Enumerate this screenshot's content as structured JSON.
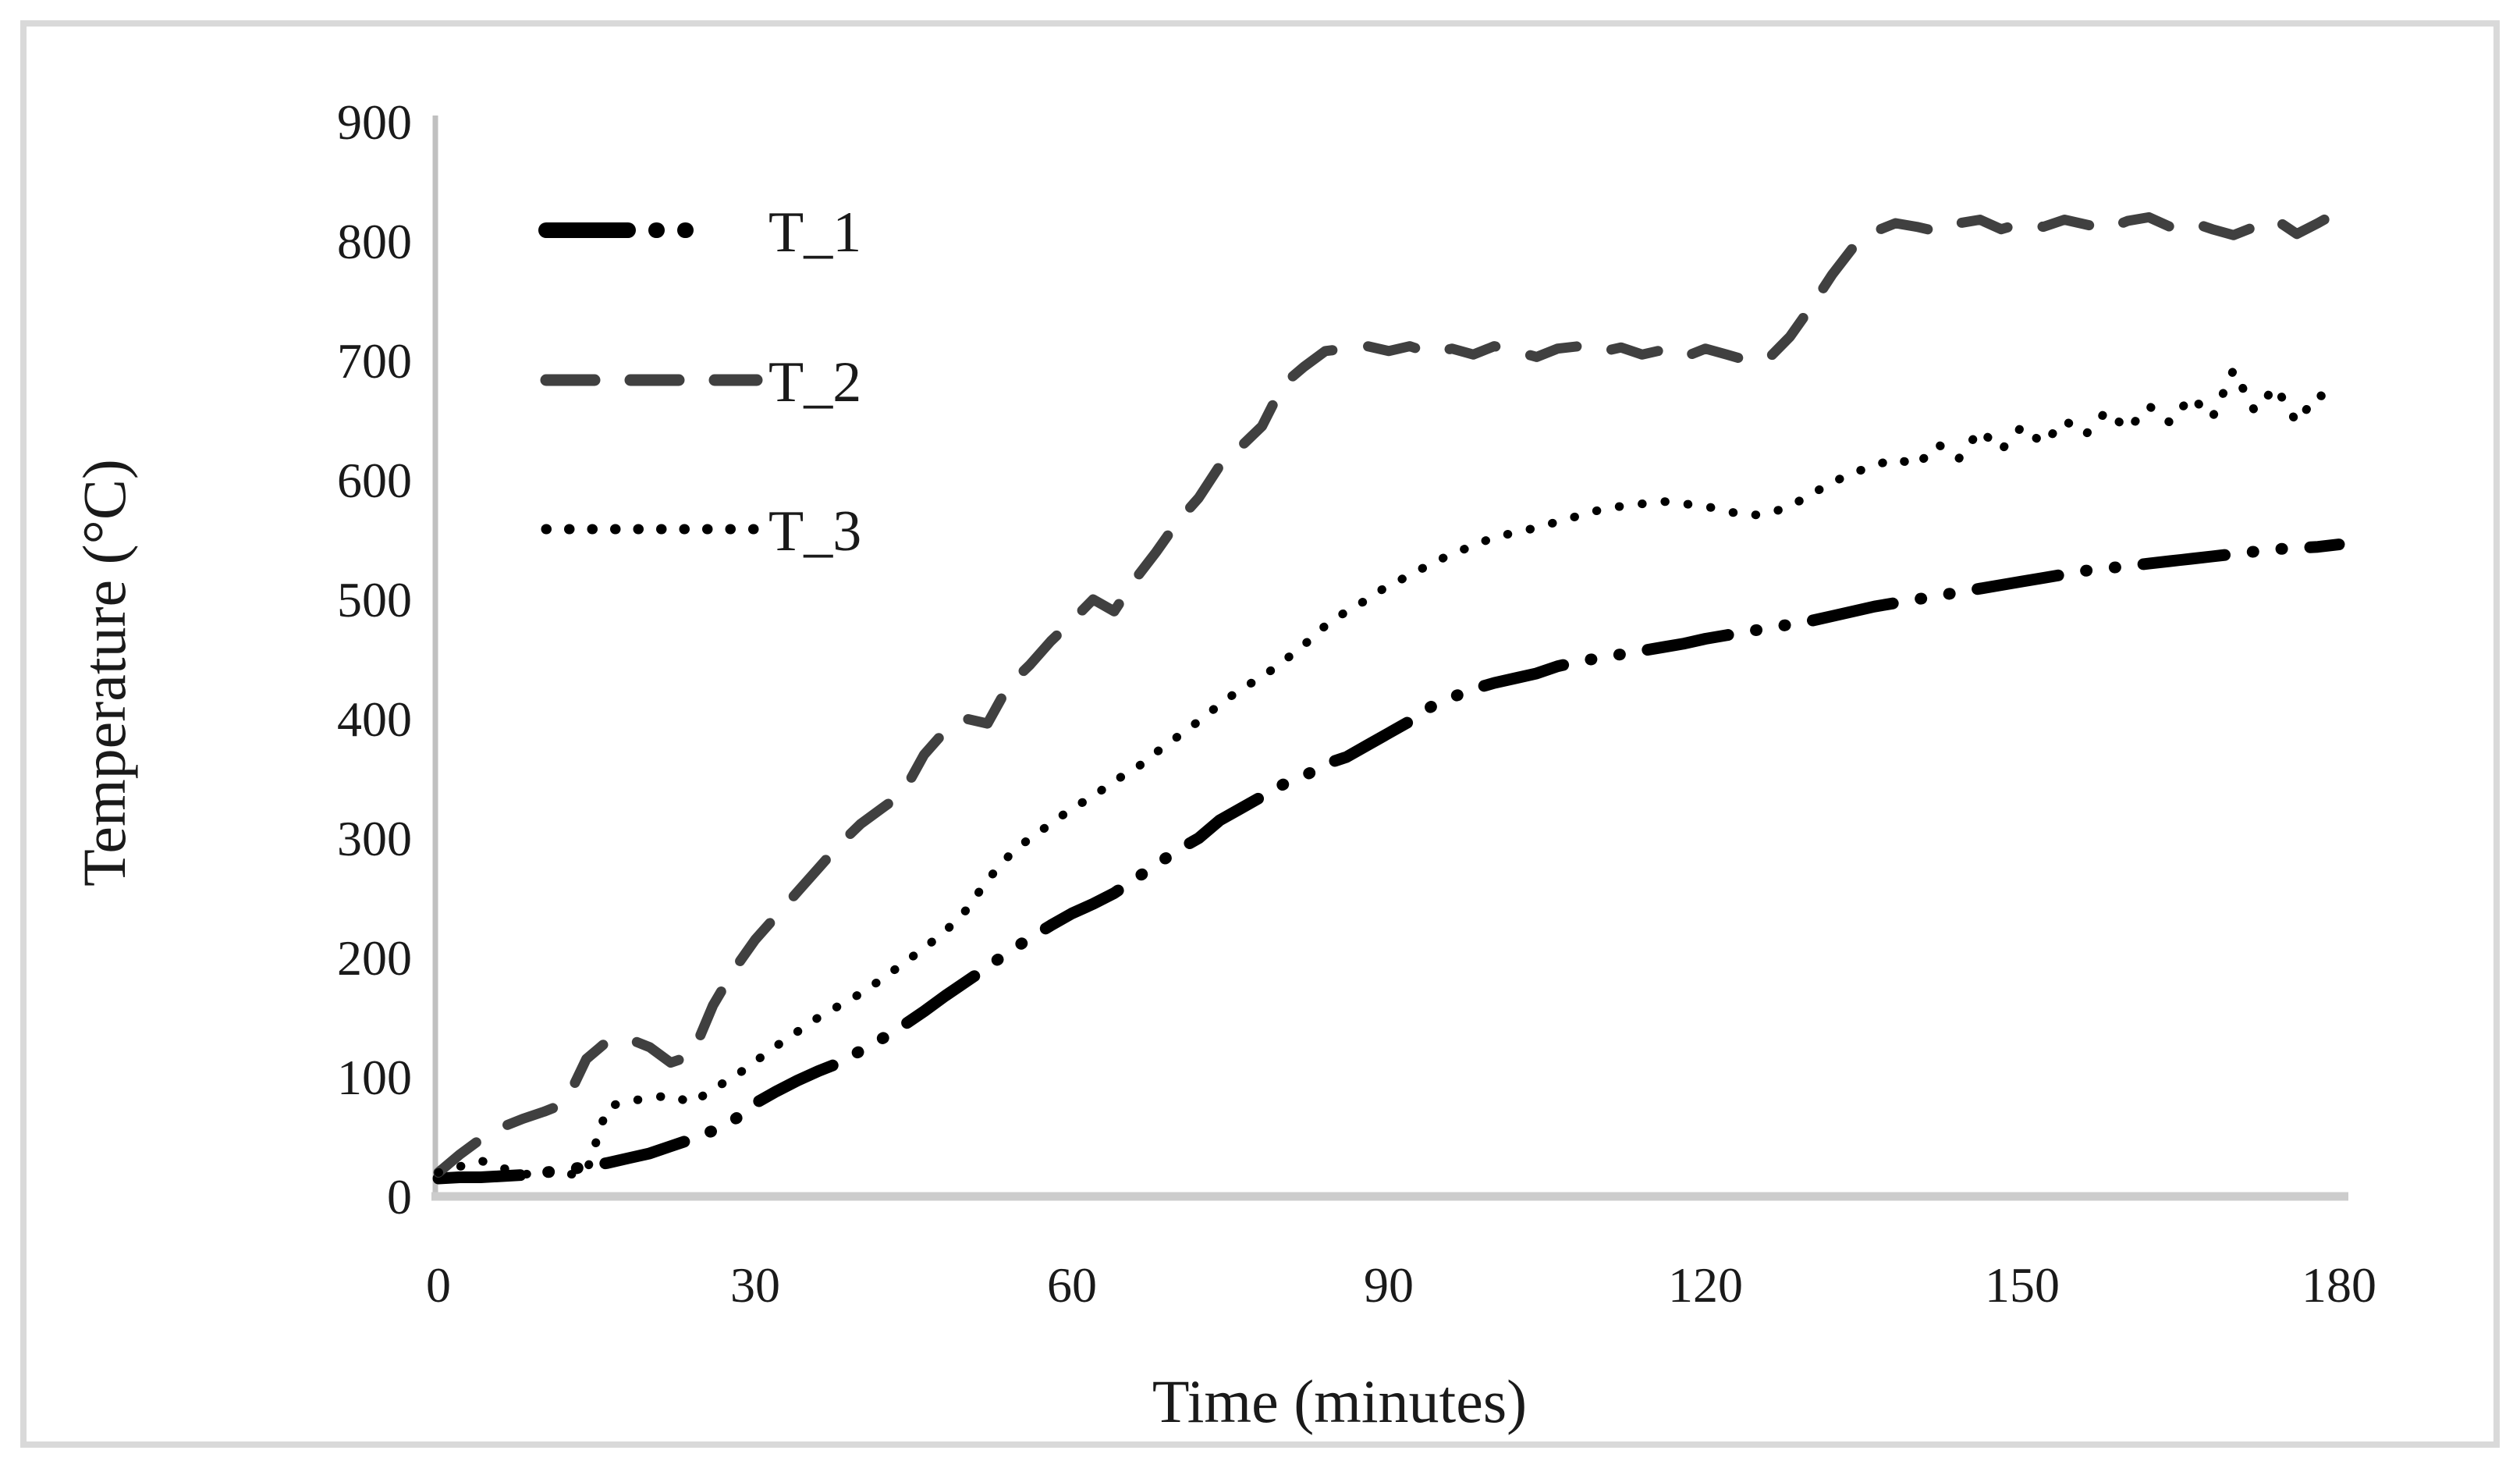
{
  "figure": {
    "background_color": "#ffffff",
    "border_color": "#d9d9d9",
    "axis_line_color": "#c4c4c4",
    "tick_text_color": "#1a1a1a"
  },
  "chart_data": {
    "type": "line",
    "title": "",
    "xlabel": "Time (minutes)",
    "ylabel": "Temperature (°C)",
    "xlim": [
      0,
      180
    ],
    "ylim": [
      0,
      900
    ],
    "x_ticks": [
      0,
      30,
      60,
      90,
      120,
      150,
      180
    ],
    "y_ticks": [
      0,
      100,
      200,
      300,
      400,
      500,
      600,
      700,
      800,
      900
    ],
    "grid": false,
    "legend_position": "upper-left-inside",
    "x_start": 0,
    "x_step": 2,
    "series": [
      {
        "name": "T_1",
        "color": "#000000",
        "style": "dash-dot-dot",
        "stroke_width": 15,
        "dasharray": "105 36 1 36 1 36",
        "values": [
          15,
          16,
          16,
          17,
          18,
          20,
          22,
          25,
          28,
          32,
          36,
          42,
          48,
          55,
          64,
          78,
          88,
          97,
          105,
          112,
          122,
          132,
          143,
          155,
          168,
          180,
          192,
          205,
          216,
          227,
          237,
          245,
          254,
          266,
          278,
          290,
          300,
          315,
          325,
          335,
          345,
          352,
          362,
          368,
          378,
          388,
          398,
          410,
          418,
          425,
          430,
          434,
          438,
          444,
          448,
          451,
          454,
          457,
          460,
          463,
          467,
          470,
          473,
          476,
          479,
          482,
          486,
          490,
          494,
          497,
          500,
          503,
          506,
          509,
          512,
          515,
          518,
          521,
          524,
          526,
          528,
          530,
          532,
          534,
          536,
          538,
          540,
          542,
          543,
          544,
          546
        ]
      },
      {
        "name": "T_2",
        "color": "#404040",
        "style": "dashed",
        "stroke_width": 13,
        "dasharray": "62 46",
        "values": [
          20,
          35,
          48,
          58,
          65,
          71,
          78,
          115,
          130,
          132,
          125,
          112,
          118,
          160,
          190,
          215,
          235,
          255,
          275,
          295,
          312,
          325,
          338,
          370,
          390,
          400,
          396,
          428,
          445,
          465,
          482,
          500,
          490,
          517,
          540,
          565,
          585,
          612,
          628,
          645,
          680,
          695,
          708,
          710,
          712,
          708,
          712,
          706,
          710,
          705,
          712,
          708,
          703,
          710,
          712,
          707,
          711,
          705,
          709,
          703,
          710,
          705,
          700,
          702,
          720,
          745,
          772,
          795,
          808,
          815,
          812,
          808,
          815,
          818,
          810,
          815,
          812,
          818,
          814,
          810,
          817,
          820,
          812,
          816,
          810,
          805,
          812,
          818,
          806,
          815,
          825
        ]
      },
      {
        "name": "T_3",
        "color": "#000000",
        "style": "dotted",
        "stroke_width": 11,
        "dasharray": "0.5 29",
        "values": [
          20,
          25,
          30,
          24,
          18,
          22,
          18,
          20,
          75,
          80,
          82,
          85,
          78,
          90,
          100,
          113,
          126,
          138,
          150,
          160,
          170,
          182,
          195,
          208,
          222,
          240,
          265,
          285,
          300,
          312,
          325,
          335,
          348,
          358,
          372,
          385,
          398,
          412,
          425,
          435,
          448,
          462,
          478,
          490,
          500,
          512,
          520,
          530,
          538,
          545,
          552,
          556,
          560,
          565,
          570,
          575,
          578,
          580,
          582,
          580,
          578,
          574,
          570,
          572,
          578,
          588,
          598,
          606,
          612,
          618,
          612,
          630,
          618,
          642,
          625,
          645,
          630,
          650,
          638,
          658,
          642,
          662,
          648,
          670,
          652,
          692,
          658,
          678,
          648,
          672,
          662
        ]
      }
    ]
  }
}
